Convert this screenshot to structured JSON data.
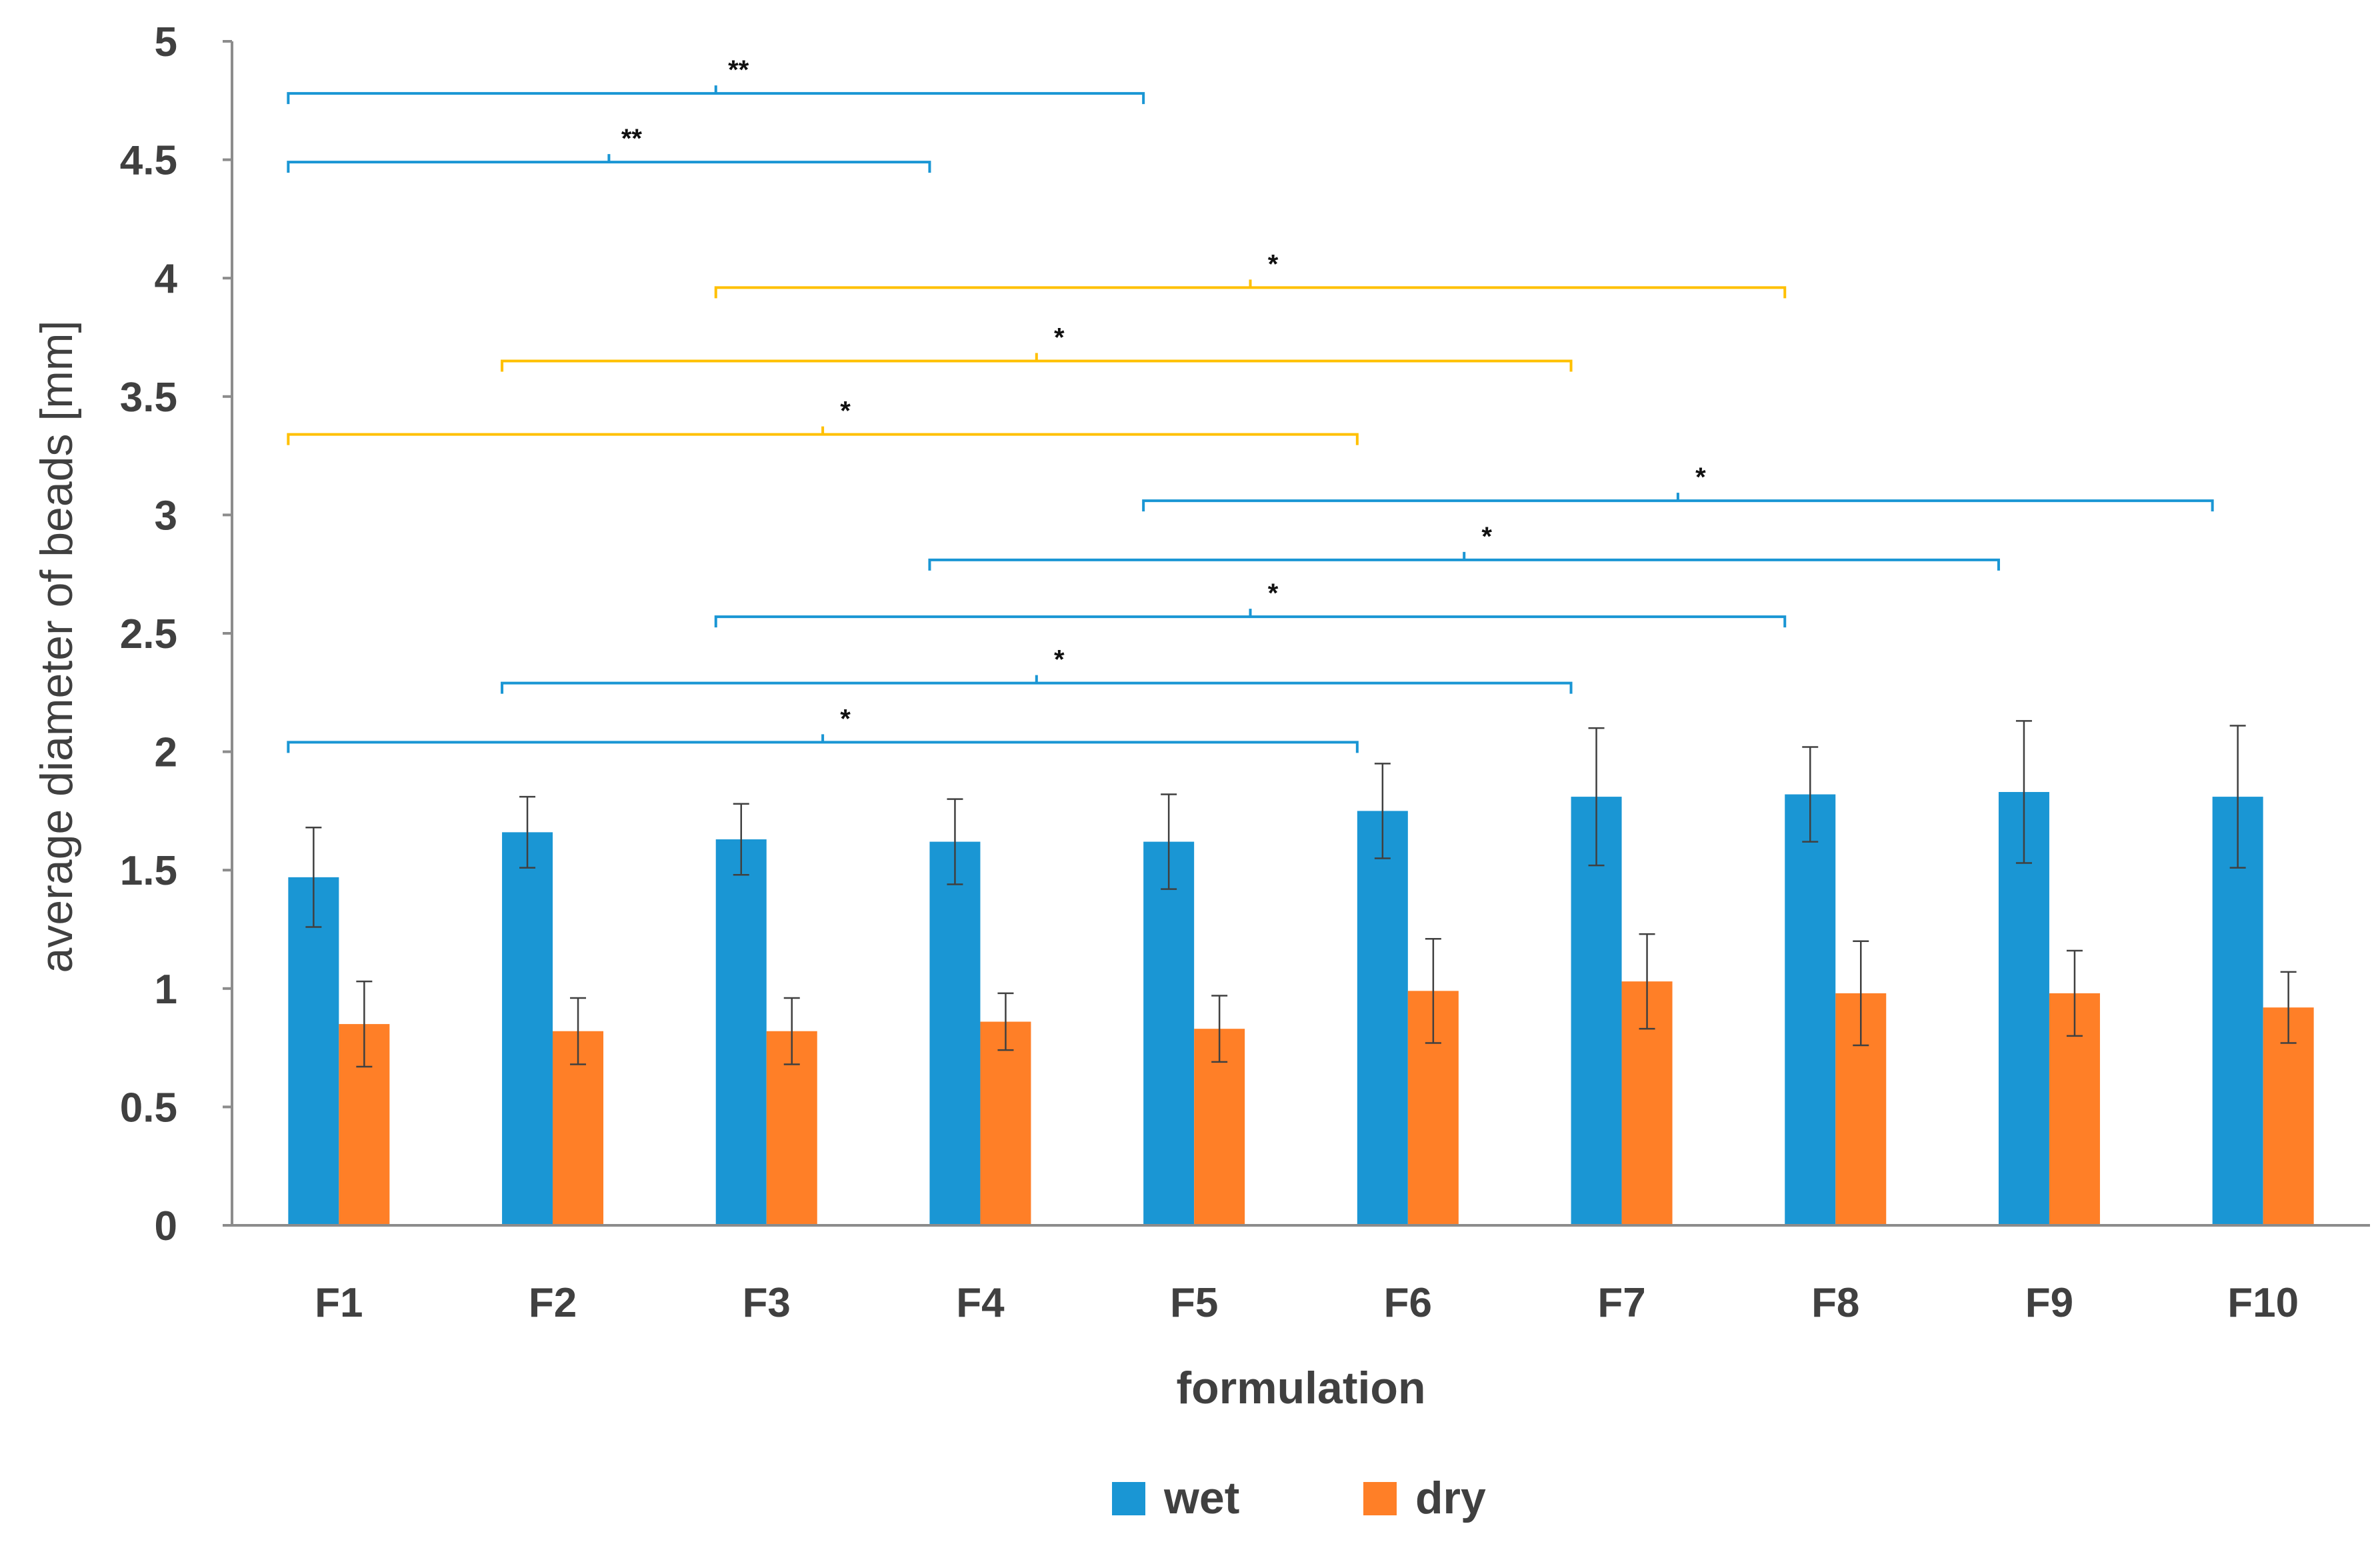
{
  "chart_data": {
    "type": "bar",
    "title": "",
    "xlabel": "formulation",
    "ylabel": "average diameter of beads [mm]",
    "ylim": [
      0,
      5
    ],
    "yticks": [
      "0",
      "0.5",
      "1",
      "1.5",
      "2",
      "2.5",
      "3",
      "3.5",
      "4",
      "4.5",
      "5"
    ],
    "categories": [
      "F1",
      "F2",
      "F3",
      "F4",
      "F5",
      "F6",
      "F7",
      "F8",
      "F9",
      "F10"
    ],
    "series": [
      {
        "name": "wet",
        "color": "#1a96d4",
        "values": [
          1.47,
          1.66,
          1.63,
          1.62,
          1.62,
          1.75,
          1.81,
          1.82,
          1.83,
          1.81
        ],
        "errors": [
          0.21,
          0.15,
          0.15,
          0.18,
          0.2,
          0.2,
          0.29,
          0.2,
          0.3,
          0.3
        ]
      },
      {
        "name": "dry",
        "color": "#ff7f27",
        "values": [
          0.85,
          0.82,
          0.82,
          0.86,
          0.83,
          0.99,
          1.03,
          0.98,
          0.98,
          0.92
        ],
        "errors": [
          0.18,
          0.14,
          0.14,
          0.12,
          0.14,
          0.22,
          0.2,
          0.22,
          0.18,
          0.15
        ]
      }
    ],
    "legend": "bottom",
    "grid": false,
    "significance_brackets": [
      {
        "from": "F1",
        "to": "F5",
        "level": 4.78,
        "label": "**",
        "color": "#1a96d4"
      },
      {
        "from": "F1",
        "to": "F4",
        "level": 4.49,
        "label": "**",
        "color": "#1a96d4"
      },
      {
        "from": "F3",
        "to": "F8",
        "level": 3.96,
        "label": "*",
        "color": "#ffc000"
      },
      {
        "from": "F2",
        "to": "F7",
        "level": 3.65,
        "label": "*",
        "color": "#ffc000"
      },
      {
        "from": "F1",
        "to": "F6",
        "level": 3.34,
        "label": "*",
        "color": "#ffc000"
      },
      {
        "from": "F5",
        "to": "F10",
        "level": 3.06,
        "label": "*",
        "color": "#1a96d4"
      },
      {
        "from": "F4",
        "to": "F9",
        "level": 2.81,
        "label": "*",
        "color": "#1a96d4"
      },
      {
        "from": "F3",
        "to": "F8",
        "level": 2.57,
        "label": "*",
        "color": "#1a96d4"
      },
      {
        "from": "F2",
        "to": "F7",
        "level": 2.29,
        "label": "*",
        "color": "#1a96d4"
      },
      {
        "from": "F1",
        "to": "F6",
        "level": 2.04,
        "label": "*",
        "color": "#1a96d4"
      }
    ]
  }
}
